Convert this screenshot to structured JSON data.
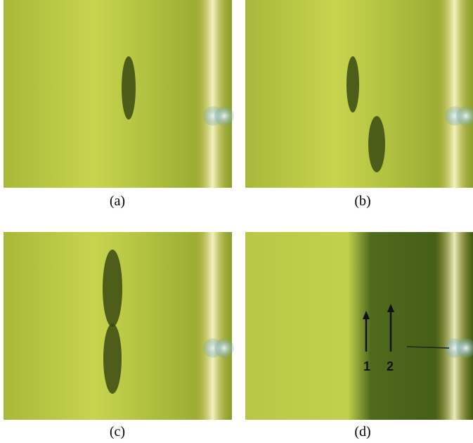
{
  "panels": [
    {
      "caption": "(a)"
    },
    {
      "caption": "(b)"
    },
    {
      "caption": "(c)"
    },
    {
      "caption": "(d)"
    }
  ],
  "annotations": {
    "arrow_labels": [
      "1",
      "2"
    ]
  }
}
